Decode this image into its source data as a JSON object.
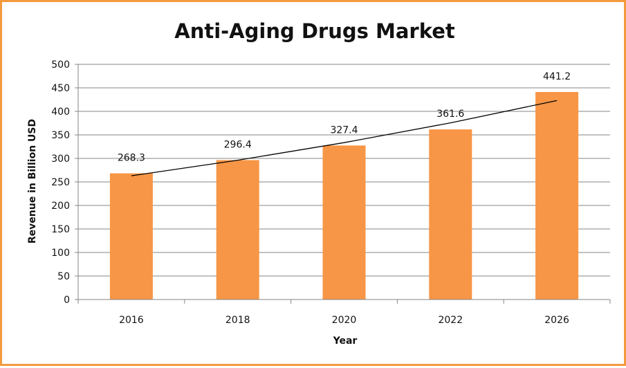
{
  "chart_data": {
    "type": "bar",
    "title": "Anti-Aging Drugs Market",
    "xlabel": "Year",
    "ylabel": "Revenue in Billion USD",
    "categories": [
      "2016",
      "2018",
      "2020",
      "2022",
      "2026"
    ],
    "values": [
      268.3,
      296.4,
      327.4,
      361.6,
      441.2
    ],
    "data_labels": [
      "268.3",
      "296.4",
      "327.4",
      "361.6",
      "441.2"
    ],
    "ylim": [
      0,
      500
    ],
    "yticks": [
      0,
      50,
      100,
      150,
      200,
      250,
      300,
      350,
      400,
      450,
      500
    ],
    "grid": true,
    "legend": "none",
    "trendline": {
      "type": "exponential",
      "start": 263,
      "end": 423
    },
    "colors": {
      "bar": "#f79646",
      "frame": "#f39a3c",
      "grid": "#868686",
      "trendline": "#000000"
    }
  }
}
